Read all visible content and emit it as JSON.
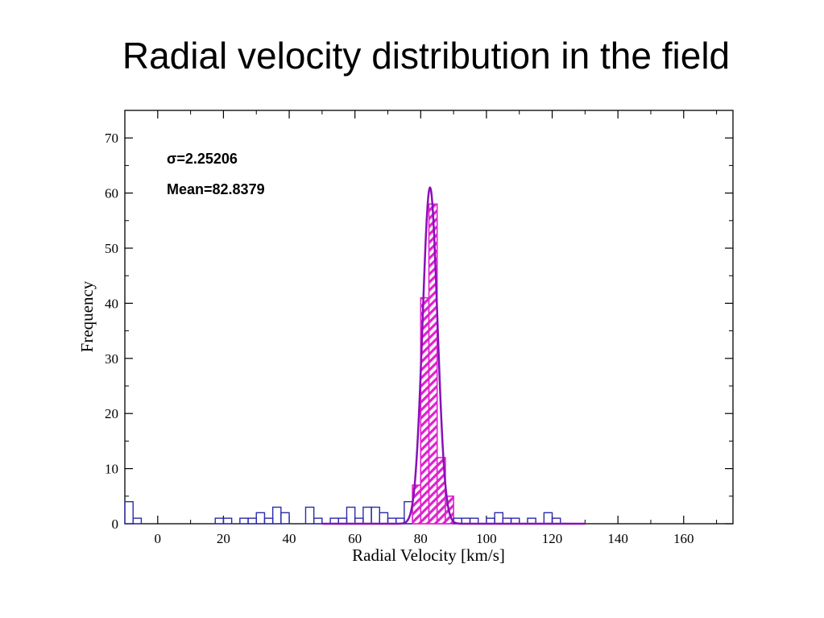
{
  "slide": {
    "title": "Radial velocity distribution in the field"
  },
  "chart_data": {
    "type": "bar",
    "title": "Radial velocity distribution in the field",
    "xlabel": "Radial Velocity [km/s]",
    "ylabel": "Frequency",
    "xlim": [
      -10,
      175
    ],
    "ylim": [
      0,
      75
    ],
    "xticks": [
      0,
      20,
      40,
      60,
      80,
      100,
      120,
      140,
      160
    ],
    "yticks": [
      0,
      10,
      20,
      30,
      40,
      50,
      60,
      70
    ],
    "grid": false,
    "legend": "none",
    "bin_width": 2.5,
    "annotations": {
      "sigma": "σ=2.25206",
      "mean": "Mean=82.8379"
    },
    "series": [
      {
        "type": "histogram",
        "color": "#2b2baa",
        "bin_starts": [
          -10,
          -7.5,
          17.5,
          20,
          25,
          27.5,
          30,
          32.5,
          35,
          37.5,
          45,
          47.5,
          52.5,
          55,
          57.5,
          60,
          62.5,
          65,
          67.5,
          70,
          72.5,
          75,
          77.5,
          80,
          82.5,
          85,
          87.5,
          90,
          92.5,
          95,
          100,
          102.5,
          105,
          107.5,
          112.5,
          117.5,
          120
        ],
        "values": [
          4,
          1,
          1,
          1,
          1,
          1,
          2,
          1,
          3,
          2,
          3,
          1,
          1,
          1,
          3,
          1,
          3,
          3,
          2,
          1,
          1,
          4,
          7,
          41,
          58,
          12,
          5,
          1,
          1,
          1,
          1,
          2,
          1,
          1,
          1,
          2,
          1
        ]
      },
      {
        "type": "gaussian-fit",
        "color": "#8a10b8",
        "mean": 82.8379,
        "sigma": 2.25206,
        "peak": 61,
        "x_range": [
          50,
          130
        ]
      }
    ],
    "highlight": {
      "color": "#e020d0",
      "x_range": [
        77.5,
        90
      ]
    }
  }
}
